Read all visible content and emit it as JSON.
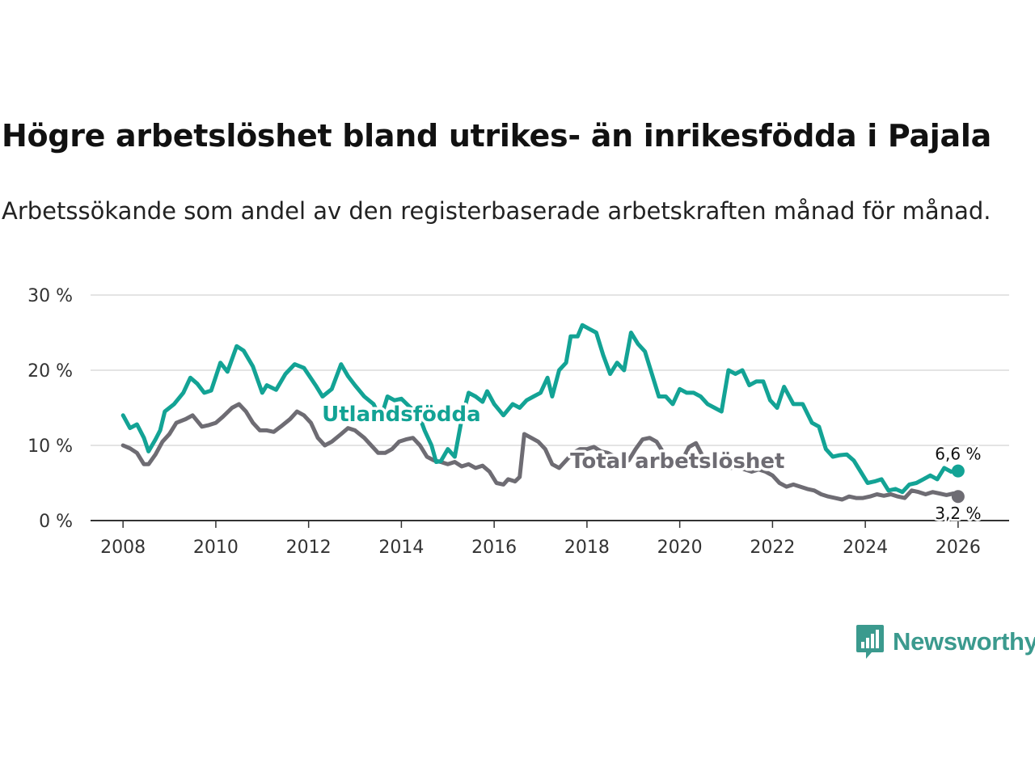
{
  "header": {
    "title": "Högre arbetslöshet bland utrikes- än inrikesfödda i Pajala",
    "subtitle": "Arbetssökande som andel av den registerbaserade arbetskraften månad för månad."
  },
  "brand": {
    "name": "Newsworthy",
    "color": "#3b9a8e",
    "icon": "bar-chart-speech-bubble-icon"
  },
  "chart_data": {
    "type": "line",
    "title": "Högre arbetslöshet bland utrikes- än inrikesfödda i Pajala",
    "xlabel": "",
    "ylabel": "",
    "xlim": [
      2007.3,
      2027.1
    ],
    "ylim": [
      0,
      30
    ],
    "grid": true,
    "x_ticks": [
      2008,
      2010,
      2012,
      2014,
      2016,
      2018,
      2020,
      2022,
      2024,
      2026
    ],
    "x_tick_labels": [
      "2008",
      "2010",
      "2012",
      "2014",
      "2016",
      "2018",
      "2020",
      "2022",
      "2024",
      "2026"
    ],
    "y_ticks": [
      0,
      10,
      20,
      30
    ],
    "y_tick_labels": [
      "0 %",
      "10 %",
      "20 %",
      "30 %"
    ],
    "series": [
      {
        "name": "Utlandsfödda",
        "color": "#13a395",
        "label": "Utlandsfödda",
        "end_label": "6,6 %",
        "points": [
          [
            2008.0,
            14.0
          ],
          [
            2008.15,
            12.3
          ],
          [
            2008.3,
            12.8
          ],
          [
            2008.45,
            11.0
          ],
          [
            2008.55,
            9.2
          ],
          [
            2008.7,
            10.8
          ],
          [
            2008.8,
            12.0
          ],
          [
            2008.9,
            14.5
          ],
          [
            2009.1,
            15.5
          ],
          [
            2009.3,
            17.0
          ],
          [
            2009.45,
            19.0
          ],
          [
            2009.6,
            18.2
          ],
          [
            2009.75,
            17.0
          ],
          [
            2009.9,
            17.3
          ],
          [
            2010.1,
            21.0
          ],
          [
            2010.25,
            19.8
          ],
          [
            2010.45,
            23.2
          ],
          [
            2010.6,
            22.6
          ],
          [
            2010.8,
            20.5
          ],
          [
            2011.0,
            17.0
          ],
          [
            2011.1,
            18.0
          ],
          [
            2011.3,
            17.4
          ],
          [
            2011.5,
            19.5
          ],
          [
            2011.7,
            20.8
          ],
          [
            2011.9,
            20.3
          ],
          [
            2012.15,
            18.0
          ],
          [
            2012.3,
            16.5
          ],
          [
            2012.5,
            17.5
          ],
          [
            2012.7,
            20.8
          ],
          [
            2012.85,
            19.2
          ],
          [
            2013.0,
            18.0
          ],
          [
            2013.2,
            16.5
          ],
          [
            2013.4,
            15.5
          ],
          [
            2013.55,
            13.5
          ],
          [
            2013.7,
            16.5
          ],
          [
            2013.85,
            16.0
          ],
          [
            2014.0,
            16.2
          ],
          [
            2014.2,
            15.0
          ],
          [
            2014.35,
            14.5
          ],
          [
            2014.5,
            12.0
          ],
          [
            2014.65,
            10.0
          ],
          [
            2014.75,
            7.8
          ],
          [
            2014.85,
            7.9
          ],
          [
            2015.0,
            9.5
          ],
          [
            2015.15,
            8.5
          ],
          [
            2015.3,
            13.5
          ],
          [
            2015.45,
            17.0
          ],
          [
            2015.6,
            16.5
          ],
          [
            2015.75,
            15.8
          ],
          [
            2015.85,
            17.2
          ],
          [
            2016.0,
            15.5
          ],
          [
            2016.2,
            14.0
          ],
          [
            2016.4,
            15.5
          ],
          [
            2016.55,
            15.0
          ],
          [
            2016.7,
            16.0
          ],
          [
            2016.85,
            16.5
          ],
          [
            2017.0,
            17.0
          ],
          [
            2017.15,
            19.0
          ],
          [
            2017.25,
            16.5
          ],
          [
            2017.4,
            20.0
          ],
          [
            2017.55,
            21.0
          ],
          [
            2017.65,
            24.5
          ],
          [
            2017.8,
            24.5
          ],
          [
            2017.9,
            26.0
          ],
          [
            2018.05,
            25.5
          ],
          [
            2018.2,
            25.0
          ],
          [
            2018.35,
            22.0
          ],
          [
            2018.5,
            19.5
          ],
          [
            2018.65,
            21.0
          ],
          [
            2018.8,
            20.0
          ],
          [
            2018.95,
            25.0
          ],
          [
            2019.1,
            23.5
          ],
          [
            2019.25,
            22.5
          ],
          [
            2019.4,
            19.5
          ],
          [
            2019.55,
            16.5
          ],
          [
            2019.7,
            16.5
          ],
          [
            2019.85,
            15.5
          ],
          [
            2020.0,
            17.5
          ],
          [
            2020.15,
            17.0
          ],
          [
            2020.3,
            17.0
          ],
          [
            2020.45,
            16.5
          ],
          [
            2020.6,
            15.5
          ],
          [
            2020.75,
            15.0
          ],
          [
            2020.9,
            14.5
          ],
          [
            2021.05,
            20.0
          ],
          [
            2021.2,
            19.5
          ],
          [
            2021.35,
            20.0
          ],
          [
            2021.5,
            18.0
          ],
          [
            2021.65,
            18.5
          ],
          [
            2021.8,
            18.5
          ],
          [
            2021.95,
            16.0
          ],
          [
            2022.1,
            15.0
          ],
          [
            2022.25,
            17.8
          ],
          [
            2022.45,
            15.5
          ],
          [
            2022.65,
            15.5
          ],
          [
            2022.85,
            13.0
          ],
          [
            2023.0,
            12.5
          ],
          [
            2023.15,
            9.5
          ],
          [
            2023.3,
            8.5
          ],
          [
            2023.45,
            8.7
          ],
          [
            2023.6,
            8.8
          ],
          [
            2023.75,
            8.0
          ],
          [
            2023.9,
            6.5
          ],
          [
            2024.05,
            5.0
          ],
          [
            2024.2,
            5.2
          ],
          [
            2024.35,
            5.5
          ],
          [
            2024.5,
            4.0
          ],
          [
            2024.65,
            4.2
          ],
          [
            2024.8,
            3.8
          ],
          [
            2024.95,
            4.8
          ],
          [
            2025.1,
            5.0
          ],
          [
            2025.25,
            5.5
          ],
          [
            2025.4,
            6.0
          ],
          [
            2025.55,
            5.5
          ],
          [
            2025.7,
            7.0
          ],
          [
            2025.85,
            6.5
          ],
          [
            2026.0,
            6.6
          ]
        ]
      },
      {
        "name": "Total arbetslöshet",
        "color": "#6e6c73",
        "label": "Total arbetslöshet",
        "end_label": "3,2 %",
        "points": [
          [
            2008.0,
            10.0
          ],
          [
            2008.15,
            9.6
          ],
          [
            2008.3,
            9.0
          ],
          [
            2008.45,
            7.5
          ],
          [
            2008.55,
            7.5
          ],
          [
            2008.7,
            8.8
          ],
          [
            2008.85,
            10.5
          ],
          [
            2009.0,
            11.5
          ],
          [
            2009.15,
            13.0
          ],
          [
            2009.35,
            13.5
          ],
          [
            2009.5,
            14.0
          ],
          [
            2009.7,
            12.5
          ],
          [
            2009.85,
            12.7
          ],
          [
            2010.0,
            13.0
          ],
          [
            2010.15,
            13.8
          ],
          [
            2010.35,
            15.0
          ],
          [
            2010.5,
            15.5
          ],
          [
            2010.65,
            14.5
          ],
          [
            2010.8,
            13.0
          ],
          [
            2010.95,
            12.0
          ],
          [
            2011.1,
            12.0
          ],
          [
            2011.25,
            11.8
          ],
          [
            2011.4,
            12.5
          ],
          [
            2011.6,
            13.5
          ],
          [
            2011.75,
            14.5
          ],
          [
            2011.9,
            14.0
          ],
          [
            2012.05,
            13.0
          ],
          [
            2012.2,
            11.0
          ],
          [
            2012.35,
            10.0
          ],
          [
            2012.5,
            10.5
          ],
          [
            2012.7,
            11.5
          ],
          [
            2012.85,
            12.3
          ],
          [
            2013.0,
            12.0
          ],
          [
            2013.2,
            11.0
          ],
          [
            2013.35,
            10.0
          ],
          [
            2013.5,
            9.0
          ],
          [
            2013.65,
            9.0
          ],
          [
            2013.8,
            9.5
          ],
          [
            2013.95,
            10.5
          ],
          [
            2014.1,
            10.8
          ],
          [
            2014.25,
            11.0
          ],
          [
            2014.4,
            10.0
          ],
          [
            2014.55,
            8.5
          ],
          [
            2014.7,
            8.0
          ],
          [
            2014.85,
            7.8
          ],
          [
            2015.0,
            7.5
          ],
          [
            2015.15,
            7.8
          ],
          [
            2015.3,
            7.2
          ],
          [
            2015.45,
            7.5
          ],
          [
            2015.6,
            7.0
          ],
          [
            2015.75,
            7.3
          ],
          [
            2015.9,
            6.5
          ],
          [
            2016.05,
            5.0
          ],
          [
            2016.2,
            4.8
          ],
          [
            2016.3,
            5.5
          ],
          [
            2016.45,
            5.2
          ],
          [
            2016.55,
            5.8
          ],
          [
            2016.65,
            11.5
          ],
          [
            2016.8,
            11.0
          ],
          [
            2016.95,
            10.5
          ],
          [
            2017.1,
            9.5
          ],
          [
            2017.25,
            7.5
          ],
          [
            2017.4,
            7.0
          ],
          [
            2017.55,
            8.0
          ],
          [
            2017.7,
            9.0
          ],
          [
            2017.85,
            9.5
          ],
          [
            2018.0,
            9.5
          ],
          [
            2018.15,
            9.8
          ],
          [
            2018.3,
            9.2
          ],
          [
            2018.45,
            9.0
          ],
          [
            2018.6,
            8.5
          ],
          [
            2018.75,
            8.0
          ],
          [
            2018.9,
            8.0
          ],
          [
            2019.05,
            9.5
          ],
          [
            2019.2,
            10.8
          ],
          [
            2019.35,
            11.0
          ],
          [
            2019.5,
            10.5
          ],
          [
            2019.6,
            9.5
          ],
          [
            2019.75,
            8.0
          ],
          [
            2019.9,
            7.5
          ],
          [
            2020.05,
            8.0
          ],
          [
            2020.2,
            9.8
          ],
          [
            2020.35,
            10.3
          ],
          [
            2020.5,
            8.5
          ],
          [
            2020.65,
            7.5
          ],
          [
            2020.8,
            7.3
          ],
          [
            2020.95,
            7.0
          ],
          [
            2021.1,
            7.0
          ],
          [
            2021.25,
            7.2
          ],
          [
            2021.4,
            6.8
          ],
          [
            2021.55,
            6.5
          ],
          [
            2021.7,
            6.8
          ],
          [
            2021.85,
            6.5
          ],
          [
            2022.0,
            6.0
          ],
          [
            2022.15,
            5.0
          ],
          [
            2022.3,
            4.5
          ],
          [
            2022.45,
            4.8
          ],
          [
            2022.6,
            4.5
          ],
          [
            2022.75,
            4.2
          ],
          [
            2022.9,
            4.0
          ],
          [
            2023.05,
            3.5
          ],
          [
            2023.2,
            3.2
          ],
          [
            2023.35,
            3.0
          ],
          [
            2023.5,
            2.8
          ],
          [
            2023.65,
            3.2
          ],
          [
            2023.8,
            3.0
          ],
          [
            2023.95,
            3.0
          ],
          [
            2024.1,
            3.2
          ],
          [
            2024.25,
            3.5
          ],
          [
            2024.4,
            3.3
          ],
          [
            2024.55,
            3.5
          ],
          [
            2024.7,
            3.2
          ],
          [
            2024.85,
            3.0
          ],
          [
            2025.0,
            4.0
          ],
          [
            2025.15,
            3.8
          ],
          [
            2025.3,
            3.5
          ],
          [
            2025.45,
            3.8
          ],
          [
            2025.6,
            3.6
          ],
          [
            2025.75,
            3.4
          ],
          [
            2025.9,
            3.6
          ],
          [
            2026.0,
            3.2
          ]
        ]
      }
    ]
  }
}
